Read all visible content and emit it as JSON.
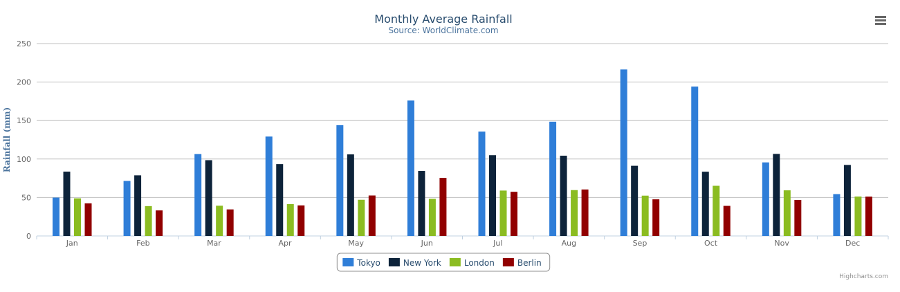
{
  "chart_data": {
    "type": "bar",
    "title": "Monthly Average Rainfall",
    "subtitle": "Source: WorldClimate.com",
    "ylabel": "Rainfall (mm)",
    "ylim": [
      0,
      250
    ],
    "yticks": [
      0,
      50,
      100,
      150,
      200,
      250
    ],
    "grid": true,
    "legend_position": "bottom-center",
    "categories": [
      "Jan",
      "Feb",
      "Mar",
      "Apr",
      "May",
      "Jun",
      "Jul",
      "Aug",
      "Sep",
      "Oct",
      "Nov",
      "Dec"
    ],
    "series": [
      {
        "name": "Tokyo",
        "color": "#2f7ed8",
        "values": [
          49.9,
          71.5,
          106.4,
          129.2,
          144.0,
          176.0,
          135.6,
          148.5,
          216.4,
          194.1,
          95.6,
          54.4
        ]
      },
      {
        "name": "New York",
        "color": "#0d233a",
        "values": [
          83.6,
          78.8,
          98.5,
          93.4,
          106.0,
          84.5,
          105.0,
          104.3,
          91.2,
          83.5,
          106.6,
          92.3
        ]
      },
      {
        "name": "London",
        "color": "#8bbc21",
        "values": [
          48.9,
          38.8,
          39.3,
          41.4,
          47.0,
          48.3,
          59.0,
          59.6,
          52.4,
          65.2,
          59.3,
          51.2
        ]
      },
      {
        "name": "Berlin",
        "color": "#910000",
        "values": [
          42.4,
          33.2,
          34.5,
          39.7,
          52.6,
          75.5,
          57.4,
          60.4,
          47.6,
          39.1,
          46.8,
          51.1
        ]
      }
    ]
  },
  "ui": {
    "menu_icon": "hamburger-menu-icon",
    "credits": "Highcharts.com"
  }
}
